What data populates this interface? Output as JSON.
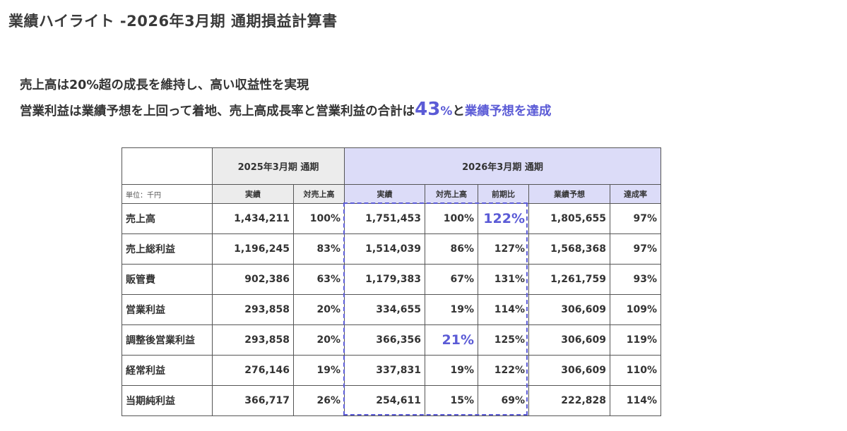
{
  "title": "業績ハイライト -2026年3月期 通期損益計算書",
  "summary": {
    "line1": "売上高は20%超の成長を維持し、高い収益性を実現",
    "line2_prefix": "営業利益は業績予想を上回って着地、売上高成長率と営業利益の合計は",
    "line2_big": "43",
    "line2_pct": "%",
    "line2_mid": "と",
    "line2_accent": "業績予想を達成"
  },
  "table": {
    "group_2025": "2025年3月期 通期",
    "group_2026": "2026年3月期 通期",
    "unit_label": "単位：千円",
    "sub_headers": [
      "実績",
      "対売上高",
      "実績",
      "対売上高",
      "前期比",
      "業績予想",
      "達成率"
    ],
    "rows": [
      {
        "label": "売上高",
        "cells": [
          "1,434,211",
          "100%",
          "1,751,453",
          "100%",
          "122%",
          "1,805,655",
          "97%"
        ]
      },
      {
        "label": "売上総利益",
        "cells": [
          "1,196,245",
          "83%",
          "1,514,039",
          "86%",
          "127%",
          "1,568,368",
          "97%"
        ]
      },
      {
        "label": "販管費",
        "cells": [
          "902,386",
          "63%",
          "1,179,383",
          "67%",
          "131%",
          "1,261,759",
          "93%"
        ]
      },
      {
        "label": "営業利益",
        "cells": [
          "293,858",
          "20%",
          "334,655",
          "19%",
          "114%",
          "306,609",
          "109%"
        ]
      },
      {
        "label": "調整後営業利益",
        "cells": [
          "293,858",
          "20%",
          "366,356",
          "21%",
          "125%",
          "306,609",
          "119%"
        ]
      },
      {
        "label": "経常利益",
        "cells": [
          "276,146",
          "19%",
          "337,831",
          "19%",
          "122%",
          "306,609",
          "110%"
        ]
      },
      {
        "label": "当期純利益",
        "cells": [
          "366,717",
          "26%",
          "254,611",
          "15%",
          "69%",
          "222,828",
          "114%"
        ]
      }
    ]
  },
  "colors": {
    "accent": "#5b5bd6",
    "header_2025": "#ececec",
    "header_2026": "#dcdcf8"
  }
}
